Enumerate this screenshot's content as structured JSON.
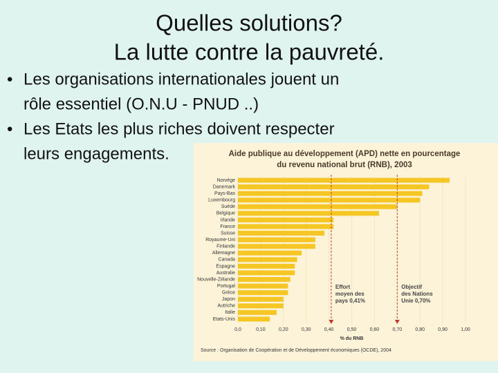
{
  "slide": {
    "title": [
      "Quelles solutions?",
      "La lutte contre la pauvreté."
    ],
    "bullets": [
      [
        "Les organisations internationales  jouent un",
        "rôle essentiel (O.N.U - PNUD ..)"
      ],
      [
        "Les Etats les plus riches doivent respecter",
        "leurs engagements."
      ]
    ]
  },
  "chart_data": {
    "type": "hbar",
    "title": [
      "Aide publique au développement (APD) nette en pourcentage",
      "du revenu national brut (RNB), 2003"
    ],
    "categories": [
      "Norvège",
      "Danemark",
      "Pays-Bas",
      "Luxembourg",
      "Suède",
      "Belgique",
      "Irlande",
      "France",
      "Suisse",
      "Royaume-Uni",
      "Finlande",
      "Allemagne",
      "Canada",
      "Espagne",
      "Australie",
      "Nouvelle-Zélande",
      "Portugal",
      "Grèce",
      "Japon",
      "Autriche",
      "Italie",
      "Etats-Unis"
    ],
    "values": [
      0.93,
      0.84,
      0.81,
      0.8,
      0.7,
      0.62,
      0.42,
      0.42,
      0.38,
      0.34,
      0.34,
      0.28,
      0.26,
      0.25,
      0.25,
      0.23,
      0.22,
      0.22,
      0.2,
      0.2,
      0.17,
      0.14
    ],
    "color": "#f6c624",
    "xlim": [
      0,
      1
    ],
    "xticks": [
      {
        "value": 0,
        "label": "0,0"
      },
      {
        "value": 0.1,
        "label": "0,10"
      },
      {
        "value": 0.2,
        "label": "0,20"
      },
      {
        "value": 0.3,
        "label": "0,30"
      },
      {
        "value": 0.4,
        "label": "0,40"
      },
      {
        "value": 0.5,
        "label": "0,50"
      },
      {
        "value": 0.6,
        "label": "0,60"
      },
      {
        "value": 0.7,
        "label": "0,70"
      },
      {
        "value": 0.8,
        "label": "0,80"
      },
      {
        "value": 0.9,
        "label": "0,90"
      },
      {
        "value": 1,
        "label": "1,00"
      }
    ],
    "xlabel": "% du RNB",
    "references": [
      {
        "value": 0.41,
        "label": [
          "Effort",
          "moyen des",
          "pays 0,41%"
        ],
        "color": "#c0392b"
      },
      {
        "value": 0.7,
        "label": [
          "Objectif",
          "des Nations",
          "Unie 0,70%"
        ],
        "color": "#c0392b"
      }
    ],
    "source": "Source : Organisation de Coopération et de Développement économiques (OCDE), 2004"
  }
}
